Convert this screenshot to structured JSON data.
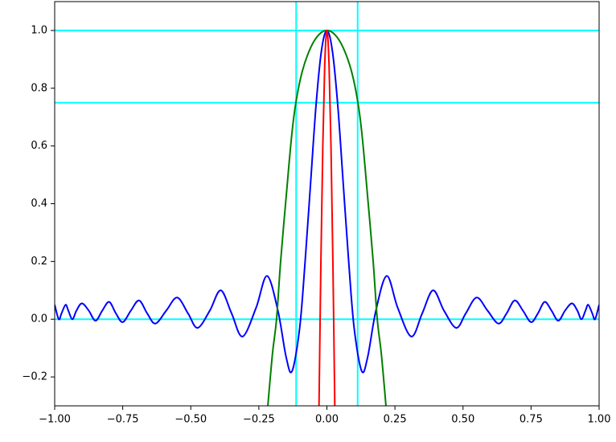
{
  "chart_data": {
    "type": "line",
    "xlim": [
      -1.0,
      1.0
    ],
    "ylim": [
      -0.3,
      1.1
    ],
    "xticks": [
      {
        "value": -1.0,
        "label": "−1.00"
      },
      {
        "value": -0.75,
        "label": "−0.75"
      },
      {
        "value": -0.5,
        "label": "−0.50"
      },
      {
        "value": -0.25,
        "label": "−0.25"
      },
      {
        "value": 0,
        "label": "0.00"
      },
      {
        "value": 0.25,
        "label": "0.25"
      },
      {
        "value": 0.5,
        "label": "0.50"
      },
      {
        "value": 0.75,
        "label": "0.75"
      },
      {
        "value": 1.0,
        "label": "1.00"
      }
    ],
    "yticks": [
      {
        "value": -0.2,
        "label": "−0.2"
      },
      {
        "value": 0,
        "label": "0.0"
      },
      {
        "value": 0.2,
        "label": "0.2"
      },
      {
        "value": 0.4,
        "label": "0.4"
      },
      {
        "value": 0.6,
        "label": "0.6"
      },
      {
        "value": 0.8,
        "label": "0.8"
      },
      {
        "value": 1.0,
        "label": "1.0"
      }
    ],
    "reference_color": "#00ffff",
    "hlines": [
      1.0,
      0.75,
      0.0
    ],
    "vlines": [
      -0.113,
      0.113
    ],
    "series": [
      {
        "color": "#0000ff",
        "x": [
          -1.0,
          -0.985,
          -0.975,
          -0.96,
          -0.95,
          -0.935,
          -0.92,
          -0.9,
          -0.875,
          -0.85,
          -0.825,
          -0.8,
          -0.775,
          -0.75,
          -0.72,
          -0.69,
          -0.66,
          -0.63,
          -0.59,
          -0.55,
          -0.51,
          -0.475,
          -0.43,
          -0.39,
          -0.35,
          -0.31,
          -0.26,
          -0.22,
          -0.18,
          -0.15,
          -0.128,
          -0.1,
          -0.08,
          -0.06,
          -0.04,
          -0.02,
          0,
          0.02,
          0.04,
          0.06,
          0.08,
          0.1,
          0.128,
          0.15,
          0.18,
          0.22,
          0.26,
          0.31,
          0.35,
          0.39,
          0.43,
          0.475,
          0.51,
          0.55,
          0.59,
          0.63,
          0.66,
          0.69,
          0.72,
          0.75,
          0.775,
          0.8,
          0.825,
          0.85,
          0.875,
          0.9,
          0.92,
          0.935,
          0.95,
          0.96,
          0.975,
          0.985,
          1.0
        ],
        "values": [
          0.05,
          0,
          0.02,
          0.05,
          0.03,
          0,
          0.03,
          0.055,
          0.03,
          -0.005,
          0.03,
          0.06,
          0.02,
          -0.01,
          0.03,
          0.065,
          0.02,
          -0.015,
          0.03,
          0.075,
          0.02,
          -0.03,
          0.03,
          0.1,
          0.02,
          -0.06,
          0.04,
          0.15,
          0.03,
          -0.13,
          -0.18,
          -0.03,
          0.2,
          0.47,
          0.74,
          0.93,
          1.0,
          0.93,
          0.74,
          0.47,
          0.2,
          -0.03,
          -0.18,
          -0.13,
          0.03,
          0.15,
          0.04,
          -0.06,
          0.02,
          0.1,
          0.03,
          -0.03,
          0.02,
          0.075,
          0.03,
          -0.015,
          0.02,
          0.065,
          0.03,
          -0.01,
          0.02,
          0.06,
          0.03,
          -0.005,
          0.03,
          0.055,
          0.03,
          0,
          0.03,
          0.05,
          0.02,
          0,
          0.05
        ]
      },
      {
        "color": "#008000",
        "x": [
          -0.217,
          -0.2,
          -0.185,
          -0.17,
          -0.15,
          -0.13,
          -0.114,
          -0.09,
          -0.06,
          -0.03,
          0,
          0.03,
          0.06,
          0.09,
          0.114,
          0.13,
          0.15,
          0.17,
          0.185,
          0.2,
          0.217
        ],
        "values": [
          -0.3,
          -0.12,
          0,
          0.2,
          0.42,
          0.63,
          0.75,
          0.86,
          0.94,
          0.985,
          1.0,
          0.985,
          0.94,
          0.86,
          0.75,
          0.63,
          0.42,
          0.2,
          0,
          -0.12,
          -0.3
        ]
      },
      {
        "color": "#ff0000",
        "x": [
          -0.029,
          -0.022,
          -0.015,
          -0.008,
          0,
          0.008,
          0.015,
          0.022,
          0.029
        ],
        "values": [
          -0.3,
          0.2,
          0.6,
          0.88,
          1.0,
          0.88,
          0.6,
          0.2,
          -0.3
        ]
      }
    ]
  }
}
